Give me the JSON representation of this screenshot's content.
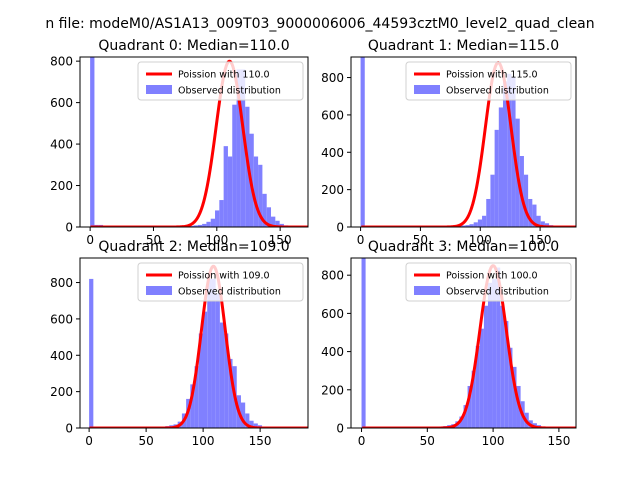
{
  "figure": {
    "title": "n file: modeM0/AS1A13_009T03_9000006006_44593cztM0_level2_quad_clean"
  },
  "colors": {
    "hist": "#8080ff",
    "poisson": "#ff0000",
    "axes": "#000000",
    "background": "#ffffff"
  },
  "chart_data": [
    {
      "type": "bar",
      "title": "Quadrant 0: Median=110.0",
      "legend": [
        "Poission with 110.0",
        "Observed distribution"
      ],
      "legend_position": "top-right",
      "grid": false,
      "xlim": [
        -8,
        172
      ],
      "ylim": [
        0,
        820
      ],
      "xticks": [
        0,
        50,
        100,
        150
      ],
      "yticks": [
        0,
        200,
        400,
        600,
        800
      ],
      "bin_width": 3.4,
      "bins": [
        [
          0,
          900
        ],
        [
          3.4,
          10
        ],
        [
          6.8,
          10
        ],
        [
          10.2,
          5
        ],
        [
          13.6,
          5
        ],
        [
          17,
          5
        ],
        [
          20.4,
          5
        ],
        [
          23.8,
          5
        ],
        [
          27.2,
          5
        ],
        [
          30.6,
          5
        ],
        [
          34,
          5
        ],
        [
          37.4,
          5
        ],
        [
          40.8,
          5
        ],
        [
          44.2,
          5
        ],
        [
          47.6,
          5
        ],
        [
          51,
          5
        ],
        [
          54.4,
          5
        ],
        [
          57.8,
          5
        ],
        [
          61.2,
          5
        ],
        [
          64.6,
          5
        ],
        [
          68,
          5
        ],
        [
          71.4,
          5
        ],
        [
          74.8,
          5
        ],
        [
          78.2,
          5
        ],
        [
          81.6,
          8
        ],
        [
          85,
          10
        ],
        [
          88.4,
          15
        ],
        [
          91.8,
          25
        ],
        [
          95.2,
          40
        ],
        [
          98.6,
          80
        ],
        [
          102,
          130
        ],
        [
          105.4,
          390
        ],
        [
          108.8,
          340
        ],
        [
          112.2,
          590
        ],
        [
          115.6,
          760
        ],
        [
          119,
          760
        ],
        [
          122.4,
          580
        ],
        [
          125.8,
          450
        ],
        [
          129.2,
          340
        ],
        [
          132.6,
          300
        ],
        [
          136,
          160
        ],
        [
          139.4,
          95
        ],
        [
          142.8,
          50
        ],
        [
          146.2,
          30
        ],
        [
          149.6,
          15
        ],
        [
          153,
          8
        ],
        [
          156.4,
          5
        ],
        [
          159.8,
          3
        ]
      ],
      "poisson_mean": 110.0,
      "poisson_peak": 800
    },
    {
      "type": "bar",
      "title": "Quadrant 1: Median=115.0",
      "legend": [
        "Poission with 115.0",
        "Observed distribution"
      ],
      "legend_position": "top-right",
      "grid": false,
      "xlim": [
        -8,
        180
      ],
      "ylim": [
        0,
        910
      ],
      "xticks": [
        0,
        50,
        100,
        150
      ],
      "yticks": [
        0,
        200,
        400,
        600,
        800
      ],
      "bin_width": 3.5,
      "bins": [
        [
          0,
          910
        ],
        [
          3.5,
          8
        ],
        [
          7,
          5
        ],
        [
          10.5,
          5
        ],
        [
          14,
          5
        ],
        [
          17.5,
          5
        ],
        [
          21,
          5
        ],
        [
          24.5,
          5
        ],
        [
          28,
          5
        ],
        [
          31.5,
          5
        ],
        [
          35,
          5
        ],
        [
          38.5,
          5
        ],
        [
          42,
          5
        ],
        [
          45.5,
          5
        ],
        [
          49,
          5
        ],
        [
          52.5,
          5
        ],
        [
          56,
          5
        ],
        [
          59.5,
          5
        ],
        [
          63,
          5
        ],
        [
          66.5,
          5
        ],
        [
          70,
          5
        ],
        [
          73.5,
          5
        ],
        [
          77,
          5
        ],
        [
          80.5,
          5
        ],
        [
          84,
          8
        ],
        [
          87.5,
          10
        ],
        [
          91,
          15
        ],
        [
          94.5,
          25
        ],
        [
          98,
          40
        ],
        [
          101.5,
          60
        ],
        [
          105,
          150
        ],
        [
          108.5,
          280
        ],
        [
          112,
          520
        ],
        [
          115.5,
          640
        ],
        [
          119,
          780
        ],
        [
          122.5,
          820
        ],
        [
          126,
          800
        ],
        [
          129.5,
          580
        ],
        [
          133,
          380
        ],
        [
          136.5,
          280
        ],
        [
          140,
          150
        ],
        [
          143.5,
          120
        ],
        [
          147,
          60
        ],
        [
          150.5,
          30
        ],
        [
          154,
          20
        ],
        [
          157.5,
          10
        ],
        [
          161,
          5
        ],
        [
          164.5,
          3
        ]
      ],
      "poisson_mean": 115.0,
      "poisson_peak": 880
    },
    {
      "type": "bar",
      "title": "Quadrant 2: Median=109.0",
      "legend": [
        "Poission with 109.0",
        "Observed distribution"
      ],
      "legend_position": "top-right",
      "grid": false,
      "xlim": [
        -8,
        192
      ],
      "ylim": [
        0,
        935
      ],
      "xticks": [
        0,
        50,
        100,
        150
      ],
      "yticks": [
        0,
        200,
        400,
        600,
        800
      ],
      "bin_width": 3.7,
      "bins": [
        [
          0,
          820
        ],
        [
          3.7,
          8
        ],
        [
          7.4,
          5
        ],
        [
          11.1,
          5
        ],
        [
          14.8,
          5
        ],
        [
          18.5,
          5
        ],
        [
          22.2,
          5
        ],
        [
          25.9,
          5
        ],
        [
          29.6,
          5
        ],
        [
          33.3,
          5
        ],
        [
          37,
          5
        ],
        [
          40.7,
          5
        ],
        [
          44.4,
          5
        ],
        [
          48.1,
          5
        ],
        [
          51.8,
          5
        ],
        [
          55.5,
          5
        ],
        [
          59.2,
          5
        ],
        [
          62.9,
          8
        ],
        [
          66.6,
          10
        ],
        [
          70.3,
          15
        ],
        [
          74,
          20
        ],
        [
          77.7,
          35
        ],
        [
          81.4,
          80
        ],
        [
          85.1,
          160
        ],
        [
          88.8,
          240
        ],
        [
          92.5,
          340
        ],
        [
          96.2,
          520
        ],
        [
          99.9,
          640
        ],
        [
          103.6,
          820
        ],
        [
          107.3,
          820
        ],
        [
          111,
          740
        ],
        [
          114.7,
          580
        ],
        [
          118.4,
          520
        ],
        [
          122.1,
          380
        ],
        [
          125.8,
          340
        ],
        [
          129.5,
          180
        ],
        [
          133.2,
          140
        ],
        [
          136.9,
          80
        ],
        [
          140.6,
          40
        ],
        [
          144.3,
          25
        ],
        [
          148,
          15
        ],
        [
          151.7,
          8
        ],
        [
          155.4,
          5
        ],
        [
          159.1,
          3
        ],
        [
          162.8,
          2
        ]
      ],
      "poisson_mean": 109.0,
      "poisson_peak": 890
    },
    {
      "type": "bar",
      "title": "Quadrant 3: Median=100.0",
      "legend": [
        "Poission with 100.0",
        "Observed distribution"
      ],
      "legend_position": "top-right",
      "grid": false,
      "xlim": [
        -8,
        163
      ],
      "ylim": [
        0,
        890
      ],
      "xticks": [
        0,
        50,
        100,
        150
      ],
      "yticks": [
        0,
        200,
        400,
        600,
        800
      ],
      "bin_width": 3.1,
      "bins": [
        [
          0,
          890
        ],
        [
          3.1,
          8
        ],
        [
          6.2,
          5
        ],
        [
          9.3,
          5
        ],
        [
          12.4,
          5
        ],
        [
          15.5,
          5
        ],
        [
          18.6,
          5
        ],
        [
          21.7,
          5
        ],
        [
          24.8,
          5
        ],
        [
          27.9,
          5
        ],
        [
          31,
          5
        ],
        [
          34.1,
          5
        ],
        [
          37.2,
          5
        ],
        [
          40.3,
          5
        ],
        [
          43.4,
          5
        ],
        [
          46.5,
          5
        ],
        [
          49.6,
          5
        ],
        [
          52.7,
          5
        ],
        [
          55.8,
          5
        ],
        [
          58.9,
          8
        ],
        [
          62,
          10
        ],
        [
          65.1,
          15
        ],
        [
          68.2,
          20
        ],
        [
          71.3,
          35
        ],
        [
          74.4,
          60
        ],
        [
          77.5,
          120
        ],
        [
          80.6,
          220
        ],
        [
          83.7,
          300
        ],
        [
          86.8,
          430
        ],
        [
          89.9,
          520
        ],
        [
          93,
          640
        ],
        [
          96.1,
          760
        ],
        [
          99.2,
          780
        ],
        [
          102.3,
          840
        ],
        [
          105.4,
          640
        ],
        [
          108.5,
          560
        ],
        [
          111.6,
          420
        ],
        [
          114.7,
          320
        ],
        [
          117.8,
          220
        ],
        [
          120.9,
          140
        ],
        [
          124,
          80
        ],
        [
          127.1,
          40
        ],
        [
          130.2,
          25
        ],
        [
          133.3,
          15
        ],
        [
          136.4,
          8
        ],
        [
          139.5,
          5
        ],
        [
          142.6,
          3
        ]
      ],
      "poisson_mean": 100.0,
      "poisson_peak": 850
    }
  ]
}
